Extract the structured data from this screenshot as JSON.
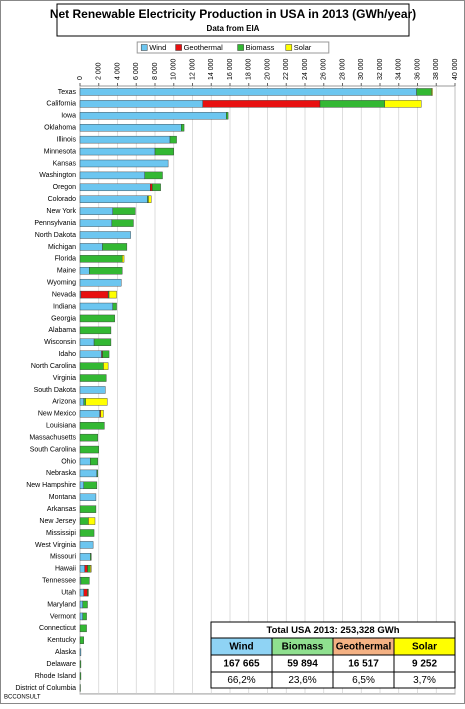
{
  "chart_data": {
    "type": "stacked-barh",
    "title": "Net Renewable Electricity Production in USA in 2013 (GWh/year)",
    "subtitle": "Data from EIA",
    "footer": "BCCONSULT",
    "legend": "top",
    "grid": true,
    "categories": [
      "Texas",
      "California",
      "Iowa",
      "Oklahoma",
      "Illinois",
      "Minnesota",
      "Kansas",
      "Washington",
      "Oregon",
      "Colorado",
      "New York",
      "Pennsylvania",
      "North Dakota",
      "Michigan",
      "Florida",
      "Maine",
      "Wyoming",
      "Nevada",
      "Indiana",
      "Georgia",
      "Alabama",
      "Wisconsin",
      "Idaho",
      "North Carolina",
      "Virginia",
      "South Dakota",
      "Arizona",
      "New Mexico",
      "Louisiana",
      "Massachusetts",
      "South Carolina",
      "Ohio",
      "Nebraska",
      "New Hampshire",
      "Montana",
      "Arkansas",
      "New Jersey",
      "Mississipi",
      "West Virginia",
      "Missouri",
      "Hawaii",
      "Tennessee",
      "Utah",
      "Maryland",
      "Vermont",
      "Connecticut",
      "Kentucky",
      "Alaska",
      "Delaware",
      "Rhode Island",
      "District of Columbia"
    ],
    "series": [
      {
        "name": "Wind",
        "color": "#6cc6f0",
        "values": [
          35900,
          13100,
          15600,
          10800,
          9600,
          8000,
          9400,
          6900,
          7500,
          7200,
          3500,
          3400,
          5400,
          2400,
          0,
          1000,
          4400,
          100,
          3500,
          0,
          0,
          1500,
          2300,
          0,
          0,
          2700,
          400,
          2100,
          0,
          0,
          0,
          1100,
          1800,
          400,
          1700,
          0,
          0,
          0,
          1400,
          1100,
          500,
          100,
          400,
          300,
          300,
          0,
          0,
          100,
          0,
          0,
          0
        ]
      },
      {
        "name": "Geothermal",
        "color": "#e81010",
        "values": [
          0,
          12500,
          0,
          0,
          0,
          0,
          0,
          0,
          200,
          0,
          0,
          0,
          0,
          0,
          0,
          0,
          0,
          2900,
          0,
          0,
          0,
          0,
          100,
          0,
          0,
          0,
          0,
          100,
          0,
          0,
          0,
          0,
          0,
          0,
          0,
          0,
          0,
          0,
          0,
          0,
          300,
          0,
          400,
          0,
          0,
          0,
          0,
          0,
          0,
          0,
          0
        ]
      },
      {
        "name": "Biomass",
        "color": "#33b833",
        "values": [
          1600,
          6900,
          200,
          300,
          700,
          2000,
          0,
          1900,
          900,
          100,
          2400,
          2300,
          0,
          2600,
          4500,
          3500,
          0,
          100,
          400,
          3700,
          3300,
          1800,
          700,
          2500,
          2800,
          0,
          200,
          0,
          2600,
          1900,
          2000,
          800,
          100,
          1400,
          0,
          1700,
          900,
          1500,
          0,
          100,
          300,
          900,
          100,
          500,
          400,
          700,
          400,
          0,
          100,
          100,
          50
        ]
      },
      {
        "name": "Solar",
        "color": "#ffff00",
        "values": [
          100,
          3900,
          0,
          0,
          0,
          0,
          0,
          0,
          0,
          300,
          0,
          0,
          0,
          0,
          200,
          0,
          0,
          800,
          0,
          0,
          0,
          0,
          0,
          500,
          0,
          0,
          2300,
          300,
          0,
          0,
          0,
          0,
          0,
          0,
          0,
          0,
          700,
          0,
          0,
          0,
          100,
          0,
          0,
          0,
          0,
          0,
          0,
          0,
          0,
          0,
          0
        ]
      }
    ],
    "xlim": [
      0,
      40000
    ],
    "xticks": [
      0,
      {
        "value": 2000,
        "label": "2 000"
      },
      {
        "value": 4000,
        "label": "4 000"
      },
      {
        "value": 6000,
        "label": "6 000"
      },
      {
        "value": 8000,
        "label": "8 000"
      },
      {
        "value": 10000,
        "label": "10 000"
      },
      {
        "value": 12000,
        "label": "12 000"
      },
      {
        "value": 14000,
        "label": "14 000"
      },
      {
        "value": 16000,
        "label": "16 000"
      },
      {
        "value": 18000,
        "label": "18 000"
      },
      {
        "value": 20000,
        "label": "20 000"
      },
      {
        "value": 22000,
        "label": "22 000"
      },
      {
        "value": 24000,
        "label": "24 000"
      },
      {
        "value": 26000,
        "label": "26 000"
      },
      {
        "value": 28000,
        "label": "28 000"
      },
      {
        "value": 30000,
        "label": "30 000"
      },
      {
        "value": 32000,
        "label": "32 000"
      },
      {
        "value": 34000,
        "label": "34 000"
      },
      {
        "value": 36000,
        "label": "36 000"
      },
      {
        "value": 38000,
        "label": "38 000"
      },
      {
        "value": 40000,
        "label": "40 000"
      }
    ],
    "summary": {
      "title": "Total USA 2013: 253,328  GWh",
      "headers": [
        "Wind",
        "Biomass",
        "Geothermal",
        "Solar"
      ],
      "header_colors": [
        "#8fd3f4",
        "#8fe08f",
        "#f4b183",
        "#ffff00"
      ],
      "totals": [
        "167 665",
        "59 894",
        "16 517",
        "9 252"
      ],
      "shares": [
        "66,2%",
        "23,6%",
        "6,5%",
        "3,7%"
      ]
    }
  }
}
